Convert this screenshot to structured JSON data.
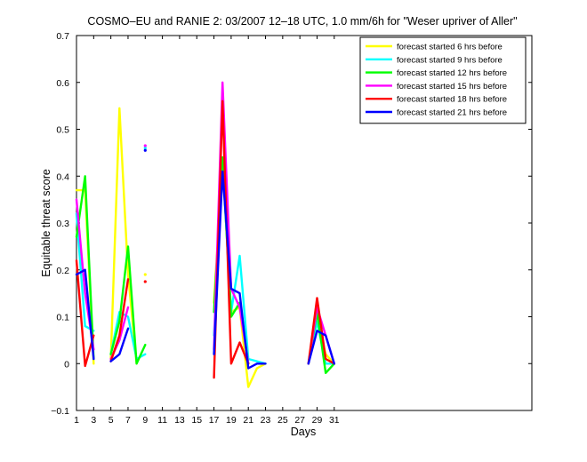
{
  "chart_data": {
    "type": "line",
    "title": "COSMO–EU and RANIE 2: 03/2007 12–18 UTC, 1.0 mm/6h for \"Weser upriver of Aller\"",
    "xlabel": "Days",
    "ylabel": "Equitable threat score",
    "xlim": [
      1,
      54
    ],
    "ylim": [
      -0.1,
      0.7
    ],
    "xticks": [
      1,
      3,
      5,
      7,
      9,
      11,
      13,
      15,
      17,
      19,
      21,
      23,
      25,
      27,
      29,
      31
    ],
    "yticks": [
      -0.1,
      0,
      0.1,
      0.2,
      0.3,
      0.4,
      0.5,
      0.6,
      0.7
    ],
    "ytick_labels": [
      "−0.1",
      "0",
      "0.1",
      "0.2",
      "0.3",
      "0.4",
      "0.5",
      "0.6",
      "0.7"
    ],
    "legend_position": "top-right",
    "grid": false,
    "series": [
      {
        "name": "forecast started 6 hrs before",
        "color": "#ffff00",
        "segments": [
          [
            [
              1,
              0.37
            ],
            [
              2,
              0.37
            ],
            [
              3,
              0.0
            ]
          ],
          [
            [
              5,
              0.01
            ],
            [
              6,
              0.545
            ],
            [
              7,
              0.19
            ],
            [
              8,
              0.0
            ]
          ],
          [
            [
              17,
              0.13
            ],
            [
              18,
              0.43
            ],
            [
              19,
              0.11
            ],
            [
              20,
              0.12
            ],
            [
              21,
              -0.05
            ],
            [
              22,
              -0.01
            ],
            [
              23,
              0.0
            ]
          ],
          [
            [
              28,
              0.0
            ],
            [
              29,
              0.09
            ],
            [
              30,
              0.02
            ],
            [
              31,
              0.0
            ]
          ]
        ],
        "points": [
          [
            9,
            0.19
          ]
        ]
      },
      {
        "name": "forecast started 9 hrs before",
        "color": "#00ffff",
        "segments": [
          [
            [
              1,
              0.32
            ],
            [
              2,
              0.08
            ],
            [
              3,
              0.07
            ]
          ],
          [
            [
              5,
              0.02
            ],
            [
              6,
              0.11
            ],
            [
              7,
              0.1
            ],
            [
              8,
              0.01
            ],
            [
              9,
              0.02
            ]
          ],
          [
            [
              17,
              0.06
            ],
            [
              18,
              0.43
            ],
            [
              19,
              0.11
            ],
            [
              20,
              0.23
            ],
            [
              21,
              0.01
            ],
            [
              22,
              0.005
            ],
            [
              23,
              0.0
            ]
          ],
          [
            [
              28,
              0.0
            ],
            [
              29,
              0.09
            ],
            [
              30,
              0.0
            ],
            [
              31,
              0.0
            ]
          ]
        ],
        "points": [
          [
            9,
            0.46
          ]
        ]
      },
      {
        "name": "forecast started 12 hrs before",
        "color": "#00ff00",
        "segments": [
          [
            [
              1,
              0.27
            ],
            [
              2,
              0.4
            ],
            [
              3,
              0.01
            ]
          ],
          [
            [
              5,
              0.02
            ],
            [
              6,
              0.09
            ],
            [
              7,
              0.25
            ],
            [
              8,
              0.0
            ],
            [
              9,
              0.04
            ]
          ],
          [
            [
              17,
              0.11
            ],
            [
              18,
              0.44
            ],
            [
              19,
              0.1
            ],
            [
              20,
              0.13
            ],
            [
              21,
              0.0
            ]
          ],
          [
            [
              28,
              0.0
            ],
            [
              29,
              0.11
            ],
            [
              30,
              -0.02
            ],
            [
              31,
              0.0
            ]
          ]
        ],
        "points": []
      },
      {
        "name": "forecast started 15 hrs before",
        "color": "#ff00ff",
        "segments": [
          [
            [
              1,
              0.35
            ],
            [
              2,
              0.15
            ],
            [
              3,
              0.03
            ]
          ],
          [
            [
              5,
              0.01
            ],
            [
              6,
              0.05
            ],
            [
              7,
              0.12
            ]
          ],
          [
            [
              17,
              0.03
            ],
            [
              18,
              0.6
            ],
            [
              19,
              0.16
            ],
            [
              20,
              0.12
            ],
            [
              21,
              0.0
            ]
          ],
          [
            [
              28,
              0.0
            ],
            [
              29,
              0.12
            ],
            [
              30,
              0.06
            ],
            [
              31,
              0.0
            ]
          ]
        ],
        "points": [
          [
            9,
            0.465
          ]
        ]
      },
      {
        "name": "forecast started 18 hrs before",
        "color": "#ff0000",
        "segments": [
          [
            [
              1,
              0.22
            ],
            [
              2,
              -0.005
            ],
            [
              3,
              0.06
            ]
          ],
          [
            [
              5,
              0.005
            ],
            [
              6,
              0.06
            ],
            [
              7,
              0.18
            ]
          ],
          [
            [
              17,
              -0.03
            ],
            [
              18,
              0.56
            ],
            [
              19,
              0.0
            ],
            [
              20,
              0.045
            ],
            [
              21,
              0.0
            ]
          ],
          [
            [
              28,
              0.0
            ],
            [
              29,
              0.14
            ],
            [
              30,
              0.01
            ],
            [
              31,
              0.0
            ]
          ]
        ],
        "points": [
          [
            9,
            0.175
          ]
        ]
      },
      {
        "name": "forecast started 21 hrs before",
        "color": "#0000ff",
        "segments": [
          [
            [
              1,
              0.19
            ],
            [
              2,
              0.2
            ],
            [
              3,
              0.01
            ]
          ],
          [
            [
              5,
              0.005
            ],
            [
              6,
              0.02
            ],
            [
              7,
              0.075
            ]
          ],
          [
            [
              17,
              0.02
            ],
            [
              18,
              0.41
            ],
            [
              19,
              0.16
            ],
            [
              20,
              0.15
            ],
            [
              21,
              -0.01
            ],
            [
              22,
              0.0
            ],
            [
              23,
              0.0
            ]
          ],
          [
            [
              28,
              0.0
            ],
            [
              29,
              0.07
            ],
            [
              30,
              0.06
            ],
            [
              31,
              0.0
            ]
          ]
        ],
        "points": [
          [
            9,
            0.455
          ]
        ]
      }
    ]
  }
}
